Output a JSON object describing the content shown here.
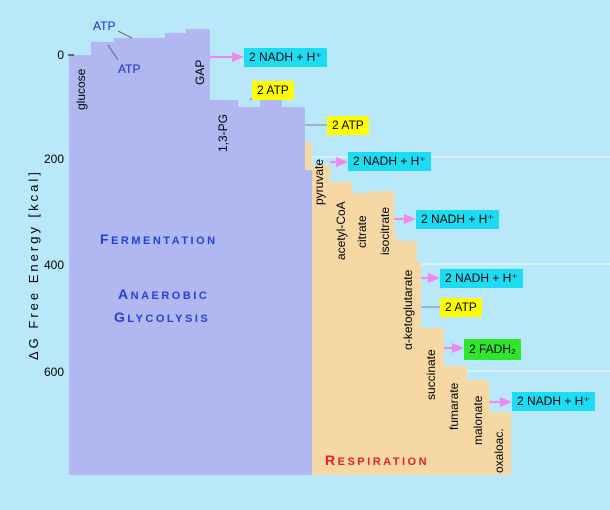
{
  "axis": {
    "label": "ΔG  Free  Energy  [kcal]",
    "ticks": [
      "0",
      "200",
      "400",
      "600"
    ]
  },
  "steps": {
    "glucose": "glucose",
    "gap": "GAP",
    "pg13": "1,3-PG",
    "pyruvate": "pyruvate",
    "acetyl_coa": "acetyl-CoA",
    "citrate": "citrate",
    "isocitrate": "isocitrate",
    "akg": "α-ketoglutarate",
    "succinate": "succinate",
    "fumarate": "fumarate",
    "malonate": "malonate",
    "oxaloac": "oxaloac."
  },
  "atp_labels": {
    "upper": "ATP",
    "lower": "ATP"
  },
  "products": {
    "nadh_1": "2 NADH + H⁺",
    "atp_1": "2 ATP",
    "atp_2": "2 ATP",
    "nadh_2": "2 NADH + H⁺",
    "nadh_3": "2 NADH + H⁺",
    "nadh_4": "2 NADH + H⁺",
    "atp_3": "2 ATP",
    "fadh2": "2 FADH₂",
    "nadh_5": "2 NADH + H⁺"
  },
  "regions": {
    "fermentation": {
      "first": "F",
      "rest": "ERMENTATION"
    },
    "anaerobic": {
      "first": "A",
      "rest": "NAEROBIC"
    },
    "glycolysis": {
      "first": "G",
      "rest": "LYCOLYSIS"
    },
    "respiration": {
      "first": "R",
      "rest": "ESPIRATION"
    }
  },
  "colors": {
    "background": "#bae8fb",
    "glycolysis_fill": "#b1b7f1",
    "respiration_fill": "#f5d8a3",
    "nadh_box": "#1cdcf4",
    "atp_box": "#ffff00",
    "fadh_box": "#2ee62e",
    "arrow": "#ee88ee",
    "region_blue": "#2242d8",
    "region_red": "#e8201a"
  }
}
